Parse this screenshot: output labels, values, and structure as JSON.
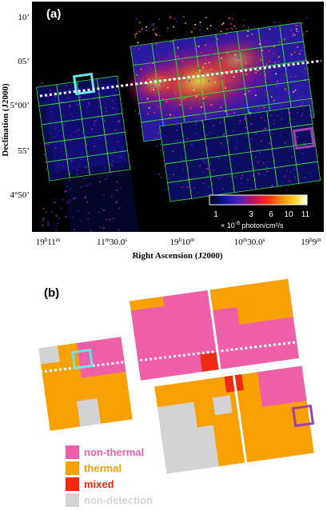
{
  "panel_a": {
    "label": "(a)",
    "y_axis_label": "Declination (J2000)",
    "x_axis_label": "Right Ascension (J2000)",
    "dec_ticks": [
      "10’",
      "05’",
      "5°00’",
      "55’",
      "4°50’"
    ],
    "ra_ticks": [
      {
        "main": "19",
        "sup1": "h",
        "mid": "11",
        "sup2": "m",
        "tail": ""
      },
      {
        "main": "11",
        "sup1": "m",
        "mid": "30.0",
        "sup2": "s",
        "tail": ""
      },
      {
        "main": "19",
        "sup1": "h",
        "mid": "10",
        "sup2": "m",
        "tail": ""
      },
      {
        "main": "10",
        "sup1": "m",
        "mid": "30.0",
        "sup2": "s",
        "tail": ""
      },
      {
        "main": "19",
        "sup1": "h",
        "mid": "9",
        "sup2": "m",
        "tail": ""
      }
    ],
    "colorbar": {
      "ticks": [
        "1",
        "3",
        "6",
        "10",
        "11"
      ],
      "unit_prefix": "× 10",
      "unit_exp": "-8",
      "unit_suffix": " photon/cm²/s"
    },
    "colors": {
      "grid": "#33dd33",
      "cyan_box": "#66e6f0",
      "purple_box": "#a040b0",
      "line": "#ffffff"
    }
  },
  "panel_b": {
    "label": "(b)",
    "legend": [
      {
        "label": "non-thermal",
        "color": "#ee5fa8"
      },
      {
        "label": "thermal",
        "color": "#f7a000"
      },
      {
        "label": "mixed",
        "color": "#ee2a10"
      },
      {
        "label": "non-detection",
        "color": "#d3d3d3"
      }
    ]
  }
}
